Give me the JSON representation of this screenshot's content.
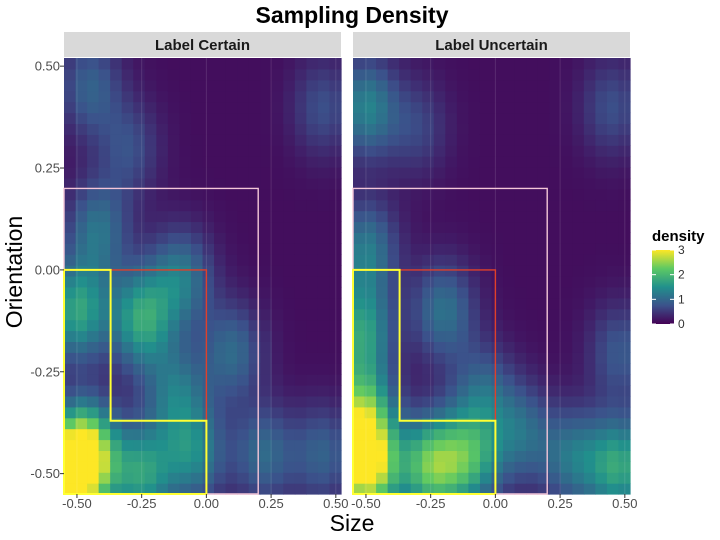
{
  "chart_data": {
    "type": "heatmap",
    "title": "Sampling Density",
    "xlabel": "Size",
    "ylabel": "Orientation",
    "xlim": [
      -0.55,
      0.52
    ],
    "ylim": [
      -0.55,
      0.52
    ],
    "x_ticks": [
      -0.5,
      -0.25,
      0.0,
      0.25,
      0.5
    ],
    "x_tick_labels": [
      "-0.50",
      "-0.25",
      "0.00",
      "0.25",
      "0.50"
    ],
    "y_ticks": [
      -0.5,
      -0.25,
      0.0,
      0.25,
      0.5
    ],
    "y_tick_labels": [
      "-0.50",
      "-0.25",
      "0.00",
      "0.25",
      "0.50"
    ],
    "grid": true,
    "legend": {
      "title": "density",
      "placement": "right",
      "range": [
        0,
        3
      ],
      "ticks": [
        0,
        1,
        2,
        3
      ],
      "tick_labels": [
        "0",
        "1",
        "2",
        "3"
      ],
      "colors": [
        "#440154",
        "#3b528b",
        "#21908c",
        "#5dc963",
        "#fde725"
      ]
    },
    "facets": [
      {
        "label": "Label Certain",
        "density_peaks": [
          {
            "x": -0.52,
            "y": -0.5,
            "density": 2.0
          },
          {
            "x": -0.47,
            "y": -0.45,
            "density": 2.6
          },
          {
            "x": -0.25,
            "y": -0.12,
            "density": 1.6
          },
          {
            "x": -0.1,
            "y": -0.02,
            "density": 1.1
          },
          {
            "x": -0.5,
            "y": -0.1,
            "density": 1.6
          },
          {
            "x": -0.42,
            "y": 0.1,
            "density": 1.0
          },
          {
            "x": -0.25,
            "y": -0.5,
            "density": 1.5
          },
          {
            "x": -0.05,
            "y": -0.45,
            "density": 1.2
          },
          {
            "x": -0.12,
            "y": -0.3,
            "density": 1.0
          },
          {
            "x": 0.1,
            "y": -0.2,
            "density": 0.9
          },
          {
            "x": -0.45,
            "y": 0.45,
            "density": 0.8
          },
          {
            "x": 0.22,
            "y": -0.45,
            "density": 0.9
          },
          {
            "x": 0.45,
            "y": -0.45,
            "density": 0.8
          },
          {
            "x": 0.45,
            "y": 0.4,
            "density": 0.6
          },
          {
            "x": -0.3,
            "y": 0.3,
            "density": 0.6
          }
        ]
      },
      {
        "label": "Label Uncertain",
        "density_peaks": [
          {
            "x": -0.5,
            "y": -0.48,
            "density": 3.0
          },
          {
            "x": -0.52,
            "y": -0.35,
            "density": 1.9
          },
          {
            "x": -0.52,
            "y": -0.15,
            "density": 1.5
          },
          {
            "x": -0.5,
            "y": 0.05,
            "density": 1.1
          },
          {
            "x": -0.5,
            "y": 0.4,
            "density": 1.2
          },
          {
            "x": -0.25,
            "y": -0.48,
            "density": 2.0
          },
          {
            "x": -0.1,
            "y": -0.46,
            "density": 1.6
          },
          {
            "x": -0.2,
            "y": -0.1,
            "density": 1.0
          },
          {
            "x": -0.05,
            "y": -0.3,
            "density": 0.8
          },
          {
            "x": 0.1,
            "y": -0.4,
            "density": 0.9
          },
          {
            "x": 0.3,
            "y": -0.46,
            "density": 1.0
          },
          {
            "x": 0.48,
            "y": -0.48,
            "density": 1.6
          },
          {
            "x": 0.48,
            "y": -0.2,
            "density": 0.7
          },
          {
            "x": 0.45,
            "y": 0.4,
            "density": 0.6
          },
          {
            "x": -0.3,
            "y": 0.35,
            "density": 0.5
          }
        ]
      }
    ],
    "regions": [
      {
        "color": "#f4c6d8",
        "x": [
          -0.55,
          0.2
        ],
        "y": [
          -0.55,
          0.2
        ]
      },
      {
        "color": "#e0402a",
        "x": [
          -0.55,
          0.0
        ],
        "y": [
          -0.55,
          0.0
        ]
      },
      {
        "color": "#ffff33",
        "polygon": [
          [
            -0.55,
            0.0
          ],
          [
            -0.37,
            0.0
          ],
          [
            -0.37,
            -0.37
          ],
          [
            0.0,
            -0.37
          ],
          [
            0.0,
            -0.55
          ],
          [
            -0.55,
            -0.55
          ]
        ]
      }
    ]
  }
}
